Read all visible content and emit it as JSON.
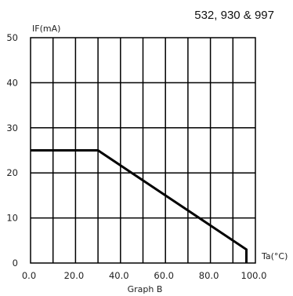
{
  "header": {
    "parts": "532,  930 & 997"
  },
  "chart_data": {
    "type": "line",
    "title": "",
    "ylabel": "IF(mA)",
    "xlabel": "Ta(°C)",
    "caption": "Graph B",
    "xlim": [
      0,
      100
    ],
    "ylim": [
      0,
      50
    ],
    "grid": true,
    "x_ticks": [
      0,
      20,
      40,
      60,
      80,
      100
    ],
    "x_tick_labels": [
      "0.0",
      "20.0",
      "40.0",
      "60.0",
      "80.0",
      "100.0"
    ],
    "y_ticks": [
      0,
      10,
      20,
      30,
      40,
      50
    ],
    "y_tick_labels": [
      "0",
      "10",
      "20",
      "30",
      "40",
      "50"
    ],
    "series": [
      {
        "x": [
          0,
          30,
          96,
          96
        ],
        "y": [
          25,
          25,
          3,
          0
        ],
        "color": "#000000"
      }
    ]
  }
}
